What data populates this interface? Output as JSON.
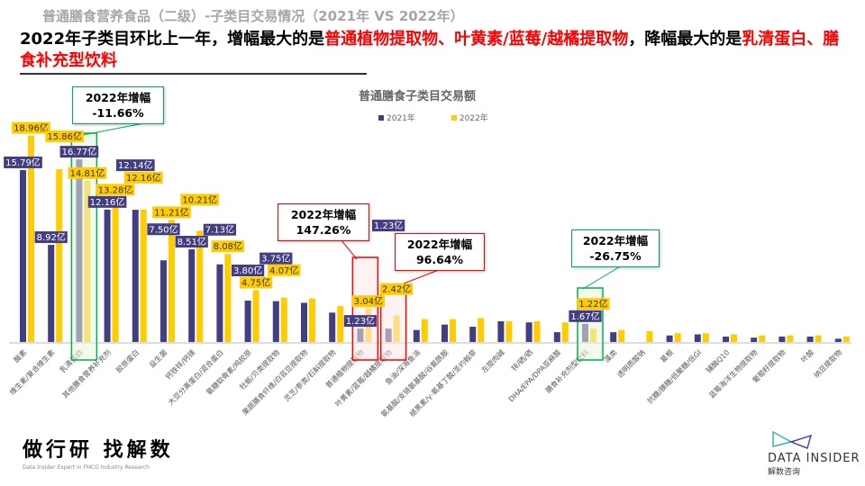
{
  "header": {
    "top_title": "普通膳食营养食品（二级）-子类目交易情况（2021年 VS 2022年）",
    "headline_parts": [
      "2022年子类目环比上一年，增幅最大的是",
      "普通植物提取物、叶黄素/蓝莓/越橘提取物",
      "，降幅最大的是",
      "乳清蛋白、膳食补充型饮料"
    ]
  },
  "colors": {
    "series_2021": "#433e82",
    "series_2022": "#ffcc00",
    "increase": "#ff0000",
    "decrease": "#00b050"
  },
  "callouts": [
    {
      "title": "2022年增幅",
      "value": "-11.66%",
      "category": "乳清蛋白",
      "type": "decrease"
    },
    {
      "title": "2022年增幅",
      "value": "147.26%",
      "category": "普通植物提取物",
      "type": "increase"
    },
    {
      "title": "2022年增幅",
      "value": "96.64%",
      "category": "叶黄素/蓝莓/越橘提取物",
      "type": "increase"
    },
    {
      "title": "2022年增幅",
      "value": "-26.75%",
      "category": "膳食补充剂型饮料",
      "type": "decrease"
    }
  ],
  "chart_data": {
    "type": "bar",
    "title": "普通膳食子类目交易额",
    "unit": "亿",
    "xlabel": "",
    "ylabel": "",
    "ylim": [
      0,
      20
    ],
    "grid": false,
    "legend_position": "top-center",
    "categories": [
      "酶素",
      "维生素/复合维生素",
      "乳清蛋白",
      "其他膳食营养补充剂",
      "胶原蛋白",
      "益生菌",
      "钙铁锌/钙镁",
      "大豆分离蛋白/混合蛋白",
      "氨糖软骨素/鸡胶原",
      "牡蛎/贝类提取物",
      "果蔬膳食纤维/白芸豆提取物",
      "灵芝/参类/石斛提取物",
      "普通植物提取物",
      "叶黄素/蓝莓/越橘提取物",
      "鱼油/深海鱼油",
      "氨基酸/支链氨基酸/谷氨酰胺",
      "褪黑素/γ-氨基丁酸/圣约翰草",
      "左旋肉碱",
      "锌/硒/硒",
      "DHA/EPA/DPA亚麻酸",
      "膳食补充剂型饮料",
      "藻类",
      "透明质酸钠",
      "葛根",
      "抗糖/胰糖/低聚糖/低GI",
      "辅酶Q10",
      "蓝莓海洋生物提取物",
      "葡萄籽提取物",
      "叶酸",
      "纳豆提取物"
    ],
    "series": [
      {
        "name": "2021年",
        "values": [
          15.79,
          8.92,
          16.77,
          12.16,
          12.14,
          7.5,
          8.51,
          7.13,
          3.8,
          3.75,
          3.6,
          2.7,
          1.23,
          1.23,
          1.1,
          1.6,
          1.4,
          1.9,
          1.8,
          0.9,
          1.67,
          0.9,
          0,
          0.6,
          0.7,
          0.5,
          0.4,
          0.5,
          0.5,
          0.3
        ],
        "labels": [
          "15.79亿",
          "8.92亿",
          "16.77亿",
          "12.16亿",
          "12.14亿",
          "7.50亿",
          "8.51亿",
          "7.13亿",
          "3.80亿",
          "3.75亿",
          null,
          null,
          "1.23亿",
          "1.23亿",
          null,
          null,
          null,
          null,
          null,
          null,
          "1.67亿",
          null,
          null,
          null,
          null,
          null,
          null,
          null,
          null,
          null
        ]
      },
      {
        "name": "2022年",
        "values": [
          18.96,
          15.86,
          14.81,
          13.28,
          12.16,
          11.21,
          10.21,
          8.08,
          4.75,
          4.07,
          4.0,
          3.3,
          3.04,
          2.42,
          2.1,
          2.1,
          2.2,
          1.9,
          1.9,
          1.8,
          1.22,
          1.1,
          1.0,
          0.8,
          0.8,
          0.7,
          0.6,
          0.6,
          0.6,
          0.5
        ],
        "labels": [
          "18.96亿",
          "15.86亿",
          "14.81亿",
          "13.28亿",
          "12.16亿",
          "11.21亿",
          "10.21亿",
          "8.08亿",
          "4.75亿",
          "4.07亿",
          null,
          null,
          "3.04亿",
          "2.42亿",
          null,
          null,
          null,
          null,
          null,
          null,
          "1.22亿",
          null,
          null,
          null,
          null,
          null,
          null,
          null,
          null,
          null
        ]
      }
    ]
  },
  "logos": {
    "left_main": "做行研 找解数",
    "left_sub": "Data Insider Expert in FMCG Industry Research",
    "right_en": "DATA INSIDER",
    "right_cn": "解数咨询"
  }
}
